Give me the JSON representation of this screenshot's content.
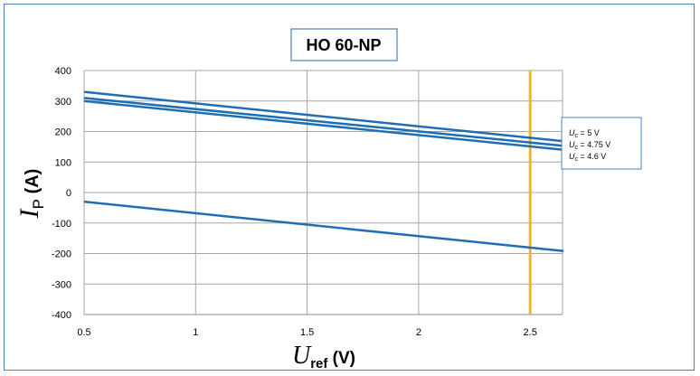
{
  "chart_data": {
    "type": "line",
    "title": "HO 60-NP",
    "ylabel": {
      "main": "I",
      "sub": "P",
      "unit": " (A)"
    },
    "xlabel": {
      "main": "U",
      "sub": "ref",
      "unit": " (V)"
    },
    "xlim": [
      0.5,
      2.65
    ],
    "ylim": [
      -400,
      400
    ],
    "x_ticks": [
      "0.5",
      "1",
      "1.5",
      "2",
      "2.5"
    ],
    "y_ticks": [
      "400",
      "300",
      "200",
      "100",
      "0",
      "-100",
      "-200",
      "-300",
      "-400"
    ],
    "grid": true,
    "series": [
      {
        "x": [
          0.5,
          2.65
        ],
        "y": [
          330,
          168
        ],
        "color": "#1f6db5"
      },
      {
        "x": [
          0.5,
          2.65
        ],
        "y": [
          310,
          153
        ],
        "color": "#1f6db5"
      },
      {
        "x": [
          0.5,
          2.65
        ],
        "y": [
          300,
          140
        ],
        "color": "#1f6db5"
      },
      {
        "x": [
          0.5,
          2.65
        ],
        "y": [
          -30,
          -192
        ],
        "color": "#1f6db5"
      }
    ],
    "vline": {
      "x": 2.5,
      "color": "#f2b51d"
    },
    "legend": {
      "placement": "right",
      "entries": [
        {
          "sym": "U",
          "sub": "c",
          "text": " = 5 V"
        },
        {
          "sym": "U",
          "sub": "c",
          "text": " = 4.75 V"
        },
        {
          "sym": "U",
          "sub": "c",
          "text": " = 4.6 V"
        }
      ]
    }
  }
}
